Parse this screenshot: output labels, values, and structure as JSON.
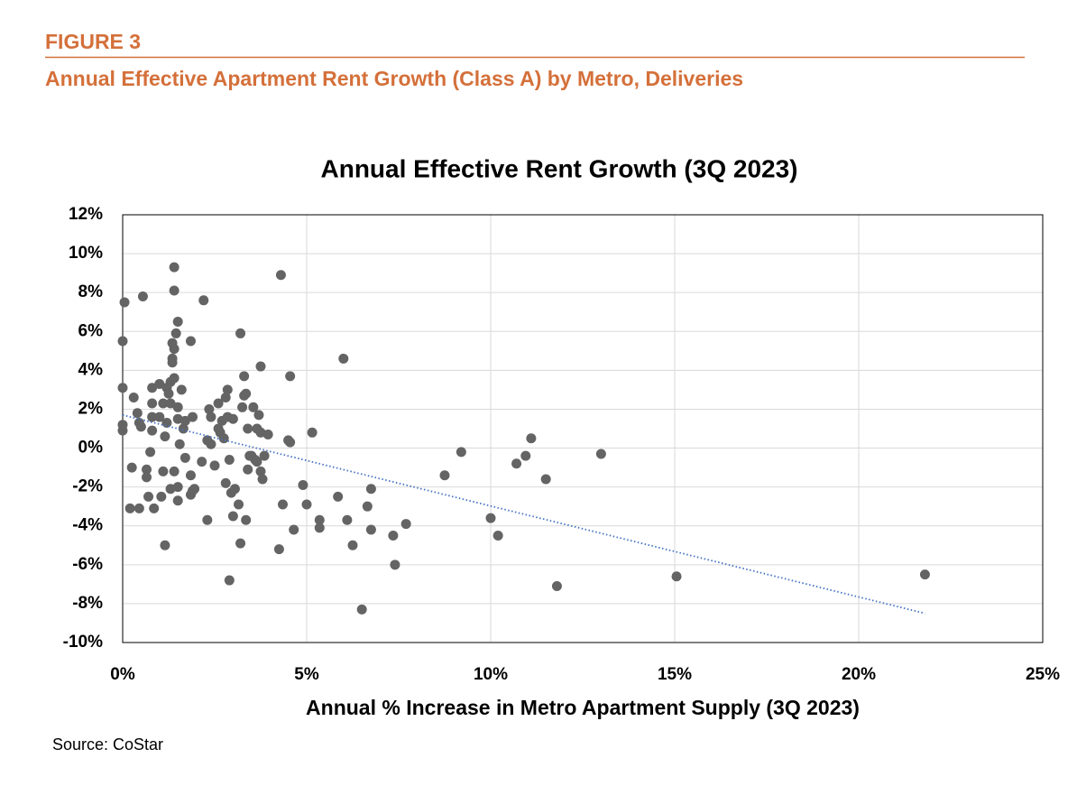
{
  "header": {
    "figure": "FIGURE 3",
    "title": "Annual Effective Apartment Rent Growth (Class A) by Metro, Deliveries"
  },
  "source": "Source: CoStar",
  "chart_data": {
    "type": "scatter",
    "title": "Annual Effective Rent Growth (3Q 2023)",
    "x_label": "Annual % Increase in Metro Apartment Supply (3Q 2023)",
    "xlim": [
      0,
      25
    ],
    "ylim": [
      -10,
      12
    ],
    "xticks": [
      {
        "value": 0,
        "label": "0%"
      },
      {
        "value": 5,
        "label": "5%"
      },
      {
        "value": 10,
        "label": "10%"
      },
      {
        "value": 15,
        "label": "15%"
      },
      {
        "value": 20,
        "label": "20%"
      },
      {
        "value": 25,
        "label": "25%"
      }
    ],
    "yticks": [
      {
        "value": -10,
        "label": "-10%"
      },
      {
        "value": -8,
        "label": "-8%"
      },
      {
        "value": -6,
        "label": "-6%"
      },
      {
        "value": -4,
        "label": "-4%"
      },
      {
        "value": -2,
        "label": "-2%"
      },
      {
        "value": 0,
        "label": "0%"
      },
      {
        "value": 2,
        "label": "2%"
      },
      {
        "value": 4,
        "label": "4%"
      },
      {
        "value": 6,
        "label": "6%"
      },
      {
        "value": 8,
        "label": "8%"
      },
      {
        "value": 10,
        "label": "10%"
      },
      {
        "value": 12,
        "label": "12%"
      }
    ],
    "grid": true,
    "point_color": "#646464",
    "x": [
      0.05,
      0,
      0,
      0,
      0,
      0.2,
      0.25,
      0.3,
      0.4,
      0.45,
      0.5,
      0.45,
      0.55,
      0.65,
      0.65,
      0.7,
      0.75,
      0.8,
      0.8,
      0.8,
      0.8,
      0.85,
      1.0,
      1.0,
      1.05,
      1.1,
      1.1,
      1.15,
      1.15,
      1.2,
      1.2,
      1.25,
      1.3,
      1.3,
      1.3,
      1.35,
      1.35,
      1.35,
      1.4,
      1.4,
      1.4,
      1.4,
      1.4,
      1.45,
      1.5,
      1.5,
      1.5,
      1.5,
      1.5,
      1.55,
      1.6,
      1.65,
      1.7,
      1.7,
      1.85,
      1.85,
      1.85,
      1.9,
      1.9,
      1.95,
      2.15,
      2.2,
      2.3,
      2.3,
      2.35,
      2.4,
      2.4,
      2.5,
      2.6,
      2.6,
      2.65,
      2.7,
      2.75,
      2.8,
      2.8,
      2.85,
      2.85,
      2.9,
      2.9,
      2.95,
      3.0,
      3.0,
      3.05,
      3.15,
      3.2,
      3.2,
      3.25,
      3.3,
      3.3,
      3.35,
      3.35,
      3.4,
      3.4,
      3.45,
      3.5,
      3.55,
      3.6,
      3.65,
      3.65,
      3.7,
      3.75,
      3.75,
      3.75,
      3.8,
      3.85,
      3.95,
      4.3,
      4.35,
      4.25,
      4.5,
      4.55,
      4.55,
      4.65,
      4.9,
      5.0,
      5.15,
      5.35,
      5.35,
      5.85,
      6.0,
      6.1,
      6.25,
      6.5,
      6.65,
      6.75,
      6.75,
      7.35,
      7.4,
      7.7,
      8.75,
      9.2,
      10.0,
      10.2,
      10.7,
      10.95,
      11.1,
      11.5,
      11.8,
      13.0,
      15.05,
      21.8
    ],
    "y": [
      7.5,
      5.5,
      3.1,
      1.2,
      0.9,
      -3.1,
      -1.0,
      2.6,
      1.8,
      1.3,
      1.1,
      -3.1,
      7.8,
      -1.1,
      -1.5,
      -2.5,
      -0.2,
      2.3,
      3.1,
      1.6,
      0.9,
      -3.1,
      1.6,
      3.3,
      -2.5,
      -1.2,
      2.3,
      -5.0,
      0.6,
      1.3,
      3.1,
      2.8,
      3.4,
      -2.1,
      2.3,
      4.6,
      4.4,
      5.4,
      5.1,
      3.6,
      -1.2,
      9.3,
      8.1,
      5.9,
      1.5,
      2.1,
      -2.0,
      6.5,
      -2.7,
      0.2,
      3.0,
      1.0,
      -0.5,
      1.4,
      -2.4,
      -1.4,
      5.5,
      1.6,
      -2.2,
      -2.1,
      -0.7,
      7.6,
      0.4,
      -3.7,
      2.0,
      1.6,
      0.2,
      -0.9,
      2.3,
      1.0,
      0.8,
      1.4,
      0.5,
      2.6,
      -1.8,
      3.0,
      1.6,
      -0.6,
      -6.8,
      -2.3,
      -3.5,
      1.5,
      -2.1,
      -2.9,
      5.9,
      -4.9,
      2.1,
      2.7,
      3.7,
      2.8,
      -3.7,
      1.0,
      -1.1,
      -0.4,
      -0.4,
      2.1,
      -0.6,
      -0.7,
      1.0,
      1.7,
      4.2,
      -1.2,
      0.8,
      -1.6,
      -0.4,
      0.7,
      8.9,
      -2.9,
      -5.2,
      0.4,
      3.7,
      0.3,
      -4.2,
      -1.9,
      -2.9,
      0.8,
      -4.1,
      -3.7,
      -2.5,
      4.6,
      -3.7,
      -5.0,
      -8.3,
      -3.0,
      -2.1,
      -4.2,
      -4.5,
      -6.0,
      -3.9,
      -1.4,
      -0.2,
      -3.6,
      -4.5,
      -0.8,
      -0.4,
      0.5,
      -1.6,
      -7.1,
      -0.3,
      -6.6,
      -6.5
    ],
    "trendline": {
      "color": "#4472c4",
      "x": [
        0,
        21.8
      ],
      "y": [
        1.7,
        -8.5
      ]
    }
  }
}
